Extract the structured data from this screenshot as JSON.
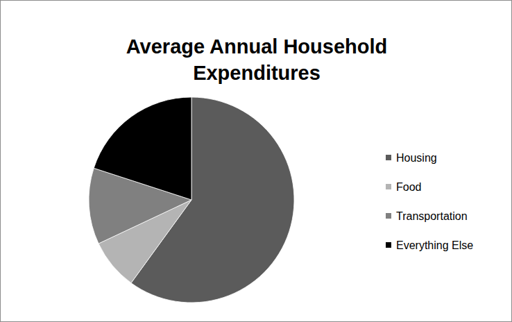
{
  "chart_data": {
    "type": "pie",
    "title": "Average Annual Household Expenditures",
    "categories": [
      "Housing",
      "Food",
      "Transportation",
      "Everything Else"
    ],
    "values": [
      60,
      8,
      12,
      20
    ],
    "colors": [
      "#5b5b5b",
      "#b4b4b4",
      "#808080",
      "#000000"
    ],
    "legend": "right"
  }
}
